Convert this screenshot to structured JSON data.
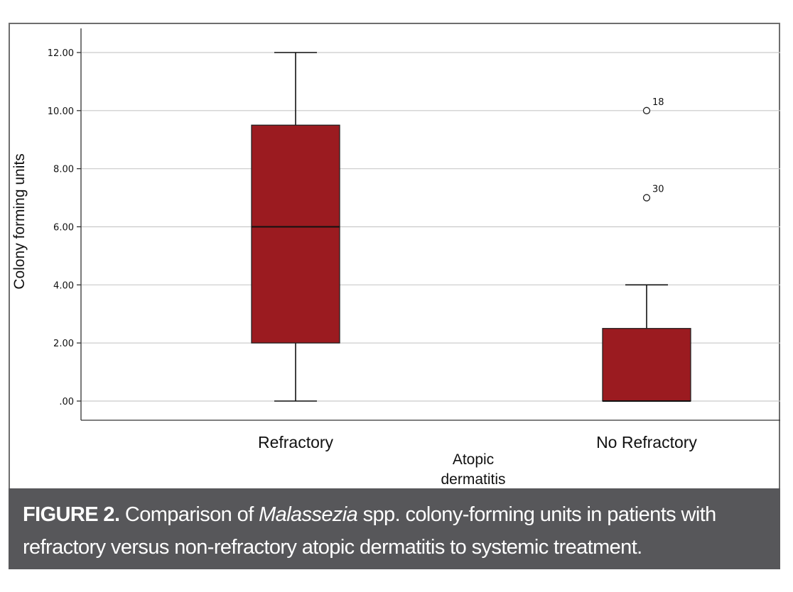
{
  "chart_data": {
    "type": "box",
    "ylabel": "Colony forming units",
    "xlabel_lines": [
      "Atopic",
      "dermatitis"
    ],
    "ylim": [
      -0.65,
      12.9
    ],
    "yticks": [
      0,
      2,
      4,
      6,
      8,
      10,
      12
    ],
    "ytick_labels": [
      ".00",
      "2.00",
      "4.00",
      "6.00",
      "8.00",
      "10.00",
      "12.00"
    ],
    "grid": true,
    "box_color": "#9b1b20",
    "categories": [
      "Refractory",
      "No Refractory"
    ],
    "boxes": [
      {
        "category": "Refractory",
        "min": 0,
        "q1": 2,
        "median": 6,
        "q3": 9.5,
        "max": 12,
        "outliers": []
      },
      {
        "category": "No Refractory",
        "min": 0,
        "q1": 0,
        "median": 0,
        "q3": 2.5,
        "max": 4,
        "outliers": [
          {
            "value": 10,
            "label": "18"
          },
          {
            "value": 7,
            "label": "30"
          }
        ]
      }
    ]
  },
  "caption": {
    "label": "FIGURE 2.",
    "text_before": " Comparison of ",
    "genus": "Malassezia",
    "text_after": " spp. colony-forming units in patients with refractory versus non-refractory atopic dermatitis to systemic treatment."
  }
}
